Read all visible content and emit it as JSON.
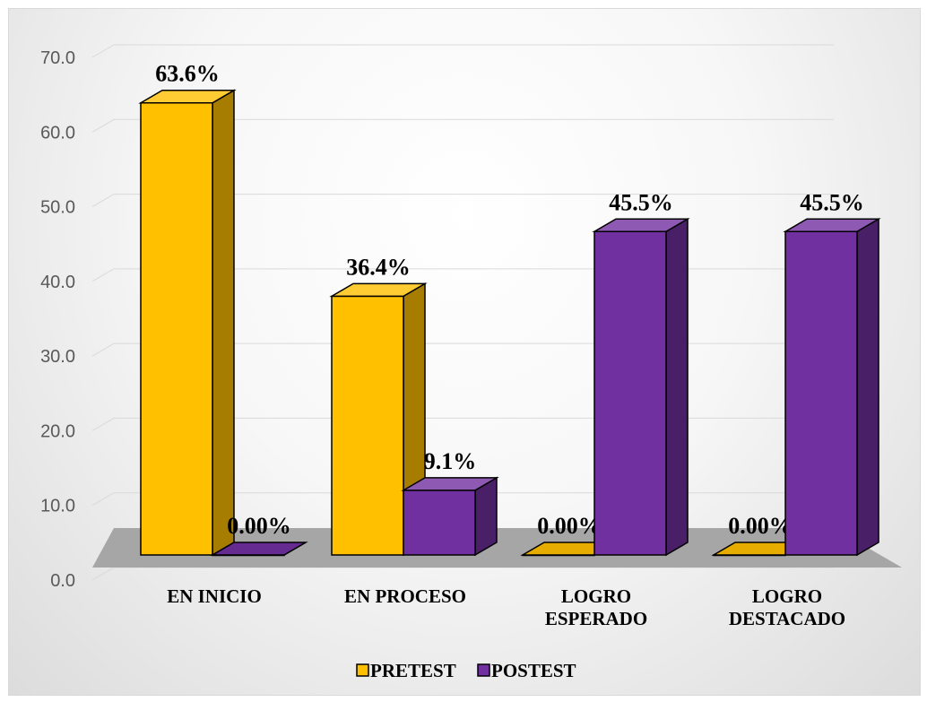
{
  "chart_data": {
    "type": "bar",
    "categories": [
      "EN INICIO",
      "EN PROCESO",
      "LOGRO ESPERADO",
      "LOGRO DESTACADO"
    ],
    "category_lines": [
      [
        "EN INICIO"
      ],
      [
        "EN PROCESO"
      ],
      [
        "LOGRO",
        "ESPERADO"
      ],
      [
        "LOGRO",
        "DESTACADO"
      ]
    ],
    "series": [
      {
        "name": "PRETEST",
        "values": [
          63.6,
          36.4,
          0,
          0
        ],
        "labels": [
          "63.6%",
          "36.4%",
          "0.00%",
          "0.00%"
        ],
        "color": "#FFC000"
      },
      {
        "name": "POSTEST",
        "values": [
          0,
          9.1,
          45.5,
          45.5
        ],
        "labels": [
          "0.00%",
          "9.1%",
          "45.5%",
          "45.5%"
        ],
        "color": "#7030A0"
      }
    ],
    "y_ticks": [
      "0.0",
      "10.0",
      "20.0",
      "30.0",
      "40.0",
      "50.0",
      "60.0",
      "70.0"
    ],
    "ylim": [
      0,
      70
    ],
    "grid": true,
    "legend": "bottom",
    "title": "",
    "xlabel": "",
    "ylabel": ""
  }
}
